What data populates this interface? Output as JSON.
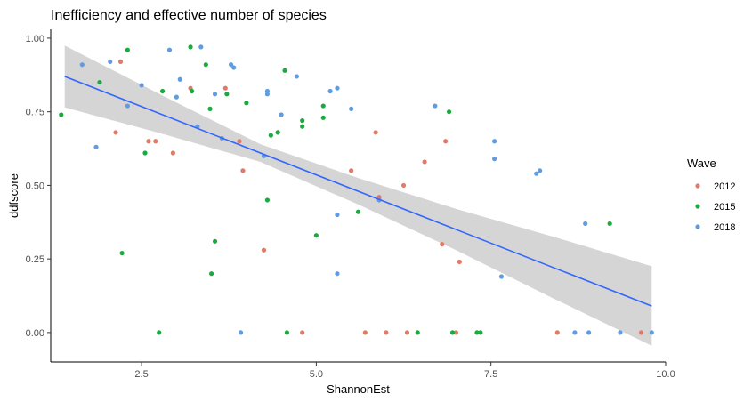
{
  "chart_data": {
    "type": "scatter",
    "title": "Inefficiency and effective number of species",
    "xlabel": "ShannonEst",
    "ylabel": "ddfscore",
    "xlim": [
      1.2,
      10.0
    ],
    "ylim": [
      -0.1,
      1.03
    ],
    "xticks": [
      2.5,
      5.0,
      7.5,
      10.0
    ],
    "xtick_labels": [
      "2.5",
      "5.0",
      "7.5",
      "10.0"
    ],
    "yticks": [
      0.0,
      0.25,
      0.5,
      0.75,
      1.0
    ],
    "ytick_labels": [
      "0.00",
      "0.25",
      "0.50",
      "0.75",
      "1.00"
    ],
    "grid": false,
    "legend": {
      "title": "Wave",
      "position": "right"
    },
    "series": [
      {
        "name": "2012",
        "color": "#E07B6A",
        "points": [
          [
            2.13,
            0.68
          ],
          [
            2.2,
            0.92
          ],
          [
            2.6,
            0.65
          ],
          [
            2.7,
            0.65
          ],
          [
            2.95,
            0.61
          ],
          [
            3.2,
            0.83
          ],
          [
            3.7,
            0.83
          ],
          [
            3.9,
            0.65
          ],
          [
            3.95,
            0.55
          ],
          [
            4.25,
            0.28
          ],
          [
            4.45,
            0.68
          ],
          [
            4.8,
            0.0
          ],
          [
            5.5,
            0.55
          ],
          [
            5.7,
            0.0
          ],
          [
            5.85,
            0.68
          ],
          [
            5.9,
            0.46
          ],
          [
            6.0,
            0.0
          ],
          [
            6.25,
            0.5
          ],
          [
            6.3,
            0.0
          ],
          [
            6.55,
            0.58
          ],
          [
            6.8,
            0.3
          ],
          [
            6.85,
            0.65
          ],
          [
            7.0,
            0.0
          ],
          [
            7.05,
            0.24
          ],
          [
            8.45,
            0.0
          ],
          [
            9.65,
            0.0
          ]
        ]
      },
      {
        "name": "2015",
        "color": "#1AAB40",
        "points": [
          [
            1.35,
            0.74
          ],
          [
            1.9,
            0.85
          ],
          [
            2.22,
            0.27
          ],
          [
            2.3,
            0.96
          ],
          [
            2.55,
            0.61
          ],
          [
            2.75,
            0.0
          ],
          [
            2.8,
            0.82
          ],
          [
            3.2,
            0.97
          ],
          [
            3.22,
            0.82
          ],
          [
            3.42,
            0.91
          ],
          [
            3.48,
            0.76
          ],
          [
            3.5,
            0.2
          ],
          [
            3.55,
            0.31
          ],
          [
            3.72,
            0.81
          ],
          [
            4.0,
            0.78
          ],
          [
            4.3,
            0.45
          ],
          [
            4.35,
            0.67
          ],
          [
            4.45,
            0.68
          ],
          [
            4.55,
            0.89
          ],
          [
            4.58,
            0.0
          ],
          [
            4.8,
            0.72
          ],
          [
            4.8,
            0.7
          ],
          [
            5.0,
            0.33
          ],
          [
            5.1,
            0.77
          ],
          [
            5.1,
            0.73
          ],
          [
            5.6,
            0.41
          ],
          [
            6.45,
            0.0
          ],
          [
            6.9,
            0.75
          ],
          [
            6.95,
            0.0
          ],
          [
            7.3,
            0.0
          ],
          [
            7.35,
            0.0
          ],
          [
            9.2,
            0.37
          ]
        ]
      },
      {
        "name": "2018",
        "color": "#619CDF",
        "points": [
          [
            1.65,
            0.91
          ],
          [
            1.85,
            0.63
          ],
          [
            2.05,
            0.92
          ],
          [
            2.3,
            0.77
          ],
          [
            2.5,
            0.84
          ],
          [
            2.9,
            0.96
          ],
          [
            3.0,
            0.8
          ],
          [
            3.05,
            0.86
          ],
          [
            3.3,
            0.7
          ],
          [
            3.35,
            0.97
          ],
          [
            3.55,
            0.81
          ],
          [
            3.65,
            0.66
          ],
          [
            3.78,
            0.91
          ],
          [
            3.82,
            0.9
          ],
          [
            3.92,
            0.0
          ],
          [
            4.25,
            0.6
          ],
          [
            4.3,
            0.81
          ],
          [
            4.3,
            0.82
          ],
          [
            4.5,
            0.74
          ],
          [
            4.72,
            0.87
          ],
          [
            5.2,
            0.82
          ],
          [
            5.3,
            0.83
          ],
          [
            5.3,
            0.4
          ],
          [
            5.3,
            0.2
          ],
          [
            5.5,
            0.76
          ],
          [
            5.9,
            0.45
          ],
          [
            6.7,
            0.77
          ],
          [
            7.55,
            0.65
          ],
          [
            7.55,
            0.59
          ],
          [
            7.65,
            0.19
          ],
          [
            8.15,
            0.54
          ],
          [
            8.2,
            0.55
          ],
          [
            8.7,
            0.0
          ],
          [
            8.85,
            0.37
          ],
          [
            8.9,
            0.0
          ],
          [
            9.35,
            0.0
          ],
          [
            9.8,
            0.0
          ]
        ]
      }
    ],
    "trend": {
      "method": "lm",
      "color": "#3366FF",
      "band_color": "#D3D3D3",
      "x": [
        1.4,
        9.8
      ],
      "fit": [
        0.87,
        0.09
      ],
      "band_halfwidth": [
        0.105,
        0.065,
        0.03,
        0.045,
        0.07,
        0.105,
        0.135
      ]
    }
  }
}
